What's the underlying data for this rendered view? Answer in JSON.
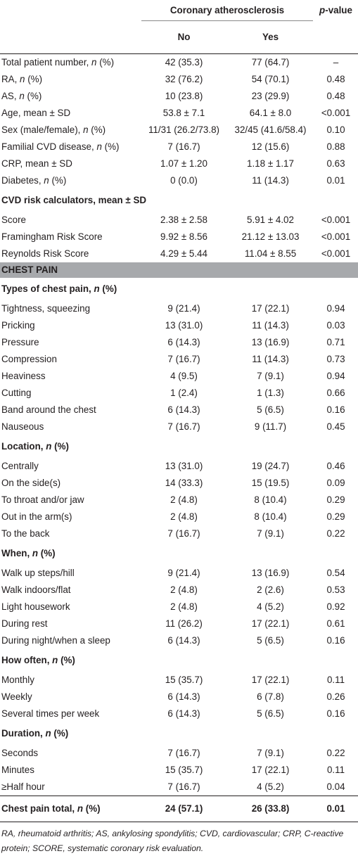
{
  "header": {
    "group_label": "Coronary atherosclerosis",
    "pvalue_label_italic": "p",
    "pvalue_label_rest": "-value",
    "col_no": "No",
    "col_yes": "Yes"
  },
  "rows_general": [
    {
      "label": "Total patient number, ",
      "n": "n",
      "suffix": " (%)",
      "no": "42 (35.3)",
      "yes": "77 (64.7)",
      "p": "–"
    },
    {
      "label": "RA, ",
      "n": "n",
      "suffix": " (%)",
      "no": "32 (76.2)",
      "yes": "54 (70.1)",
      "p": "0.48"
    },
    {
      "label": "AS, ",
      "n": "n",
      "suffix": " (%)",
      "no": "10 (23.8)",
      "yes": "23 (29.9)",
      "p": "0.48"
    },
    {
      "label": "Age, mean ± SD",
      "n": "",
      "suffix": "",
      "no": "53.8 ± 7.1",
      "yes": "64.1 ± 8.0",
      "p": "<0.001"
    },
    {
      "label": "Sex (male/female), ",
      "n": "n",
      "suffix": " (%)",
      "no": "11/31 (26.2/73.8)",
      "yes": "32/45 (41.6/58.4)",
      "p": "0.10"
    },
    {
      "label": "Familial CVD disease, ",
      "n": "n",
      "suffix": " (%)",
      "no": "7 (16.7)",
      "yes": "12 (15.6)",
      "p": "0.88"
    },
    {
      "label": "CRP, mean ± SD",
      "n": "",
      "suffix": "",
      "no": "1.07 ± 1.20",
      "yes": "1.18 ± 1.17",
      "p": "0.63"
    },
    {
      "label": "Diabetes, ",
      "n": "n",
      "suffix": " (%)",
      "no": "0 (0.0)",
      "yes": "11 (14.3)",
      "p": "0.01"
    }
  ],
  "cvd_section": {
    "title": "CVD risk calculators, mean ± SD",
    "rows": [
      {
        "label": "Score",
        "no": "2.38 ± 2.58",
        "yes": "5.91 ± 4.02",
        "p": "<0.001"
      },
      {
        "label": "Framingham Risk Score",
        "no": "9.92 ± 8.56",
        "yes": "21.12 ± 13.03",
        "p": "<0.001"
      },
      {
        "label": "Reynolds Risk Score",
        "no": "4.29 ± 5.44",
        "yes": "11.04 ± 8.55",
        "p": "<0.001"
      }
    ]
  },
  "chest_pain_bar": "CHEST PAIN",
  "types_section": {
    "title": "Types of chest pain, ",
    "n": "n",
    "suffix": " (%)",
    "rows": [
      {
        "label": "Tightness, squeezing",
        "no": "9 (21.4)",
        "yes": "17 (22.1)",
        "p": "0.94"
      },
      {
        "label": "Pricking",
        "no": "13 (31.0)",
        "yes": "11 (14.3)",
        "p": "0.03"
      },
      {
        "label": "Pressure",
        "no": "6 (14.3)",
        "yes": "13 (16.9)",
        "p": "0.71"
      },
      {
        "label": "Compression",
        "no": "7 (16.7)",
        "yes": "11 (14.3)",
        "p": "0.73"
      },
      {
        "label": "Heaviness",
        "no": "4 (9.5)",
        "yes": "7 (9.1)",
        "p": "0.94"
      },
      {
        "label": "Cutting",
        "no": "1 (2.4)",
        "yes": "1 (1.3)",
        "p": "0.66"
      },
      {
        "label": "Band around the chest",
        "no": "6 (14.3)",
        "yes": "5 (6.5)",
        "p": "0.16"
      },
      {
        "label": "Nauseous",
        "no": "7 (16.7)",
        "yes": "9 (11.7)",
        "p": "0.45"
      }
    ]
  },
  "location_section": {
    "title": "Location, ",
    "n": "n",
    "suffix": " (%)",
    "rows": [
      {
        "label": "Centrally",
        "no": "13 (31.0)",
        "yes": "19 (24.7)",
        "p": "0.46"
      },
      {
        "label": "On the side(s)",
        "no": "14 (33.3)",
        "yes": "15 (19.5)",
        "p": "0.09"
      },
      {
        "label": "To throat and/or jaw",
        "no": "2 (4.8)",
        "yes": "8 (10.4)",
        "p": "0.29"
      },
      {
        "label": "Out in the arm(s)",
        "no": "2 (4.8)",
        "yes": "8 (10.4)",
        "p": "0.29"
      },
      {
        "label": "To the back",
        "no": "7 (16.7)",
        "yes": "7 (9.1)",
        "p": "0.22"
      }
    ]
  },
  "when_section": {
    "title": "When, ",
    "n": "n",
    "suffix": " (%)",
    "rows": [
      {
        "label": "Walk up steps/hill",
        "no": "9 (21.4)",
        "yes": "13 (16.9)",
        "p": "0.54"
      },
      {
        "label": "Walk indoors/flat",
        "no": "2 (4.8)",
        "yes": "2 (2.6)",
        "p": "0.53"
      },
      {
        "label": "Light housework",
        "no": "2 (4.8)",
        "yes": "4 (5.2)",
        "p": "0.92"
      },
      {
        "label": "During rest",
        "no": "11 (26.2)",
        "yes": "17 (22.1)",
        "p": "0.61"
      },
      {
        "label": "During night/when a sleep",
        "no": "6 (14.3)",
        "yes": "5 (6.5)",
        "p": "0.16"
      }
    ]
  },
  "often_section": {
    "title": "How often, ",
    "n": "n",
    "suffix": " (%)",
    "rows": [
      {
        "label": "Monthly",
        "no": "15 (35.7)",
        "yes": "17 (22.1)",
        "p": "0.11"
      },
      {
        "label": "Weekly",
        "no": "6 (14.3)",
        "yes": "6 (7.8)",
        "p": "0.26"
      },
      {
        "label": "Several times per week",
        "no": "6 (14.3)",
        "yes": "5 (6.5)",
        "p": "0.16"
      }
    ]
  },
  "duration_section": {
    "title": "Duration, ",
    "n": "n",
    "suffix": " (%)",
    "rows": [
      {
        "label": "Seconds",
        "no": "7 (16.7)",
        "yes": "7 (9.1)",
        "p": "0.22"
      },
      {
        "label": "Minutes",
        "no": "15 (35.7)",
        "yes": "17 (22.1)",
        "p": "0.11"
      },
      {
        "label": "≥Half hour",
        "no": "7 (16.7)",
        "yes": "4 (5.2)",
        "p": "0.04"
      }
    ]
  },
  "total_row": {
    "label": "Chest pain total, ",
    "n": "n",
    "suffix": " (%)",
    "no": "24 (57.1)",
    "yes": "26 (33.8)",
    "p": "0.01"
  },
  "footnote": "RA, rheumatoid arthritis; AS, ankylosing spondylitis; CVD, cardiovascular; CRP, C-reactive protein; SCORE, systematic coronary risk evaluation."
}
